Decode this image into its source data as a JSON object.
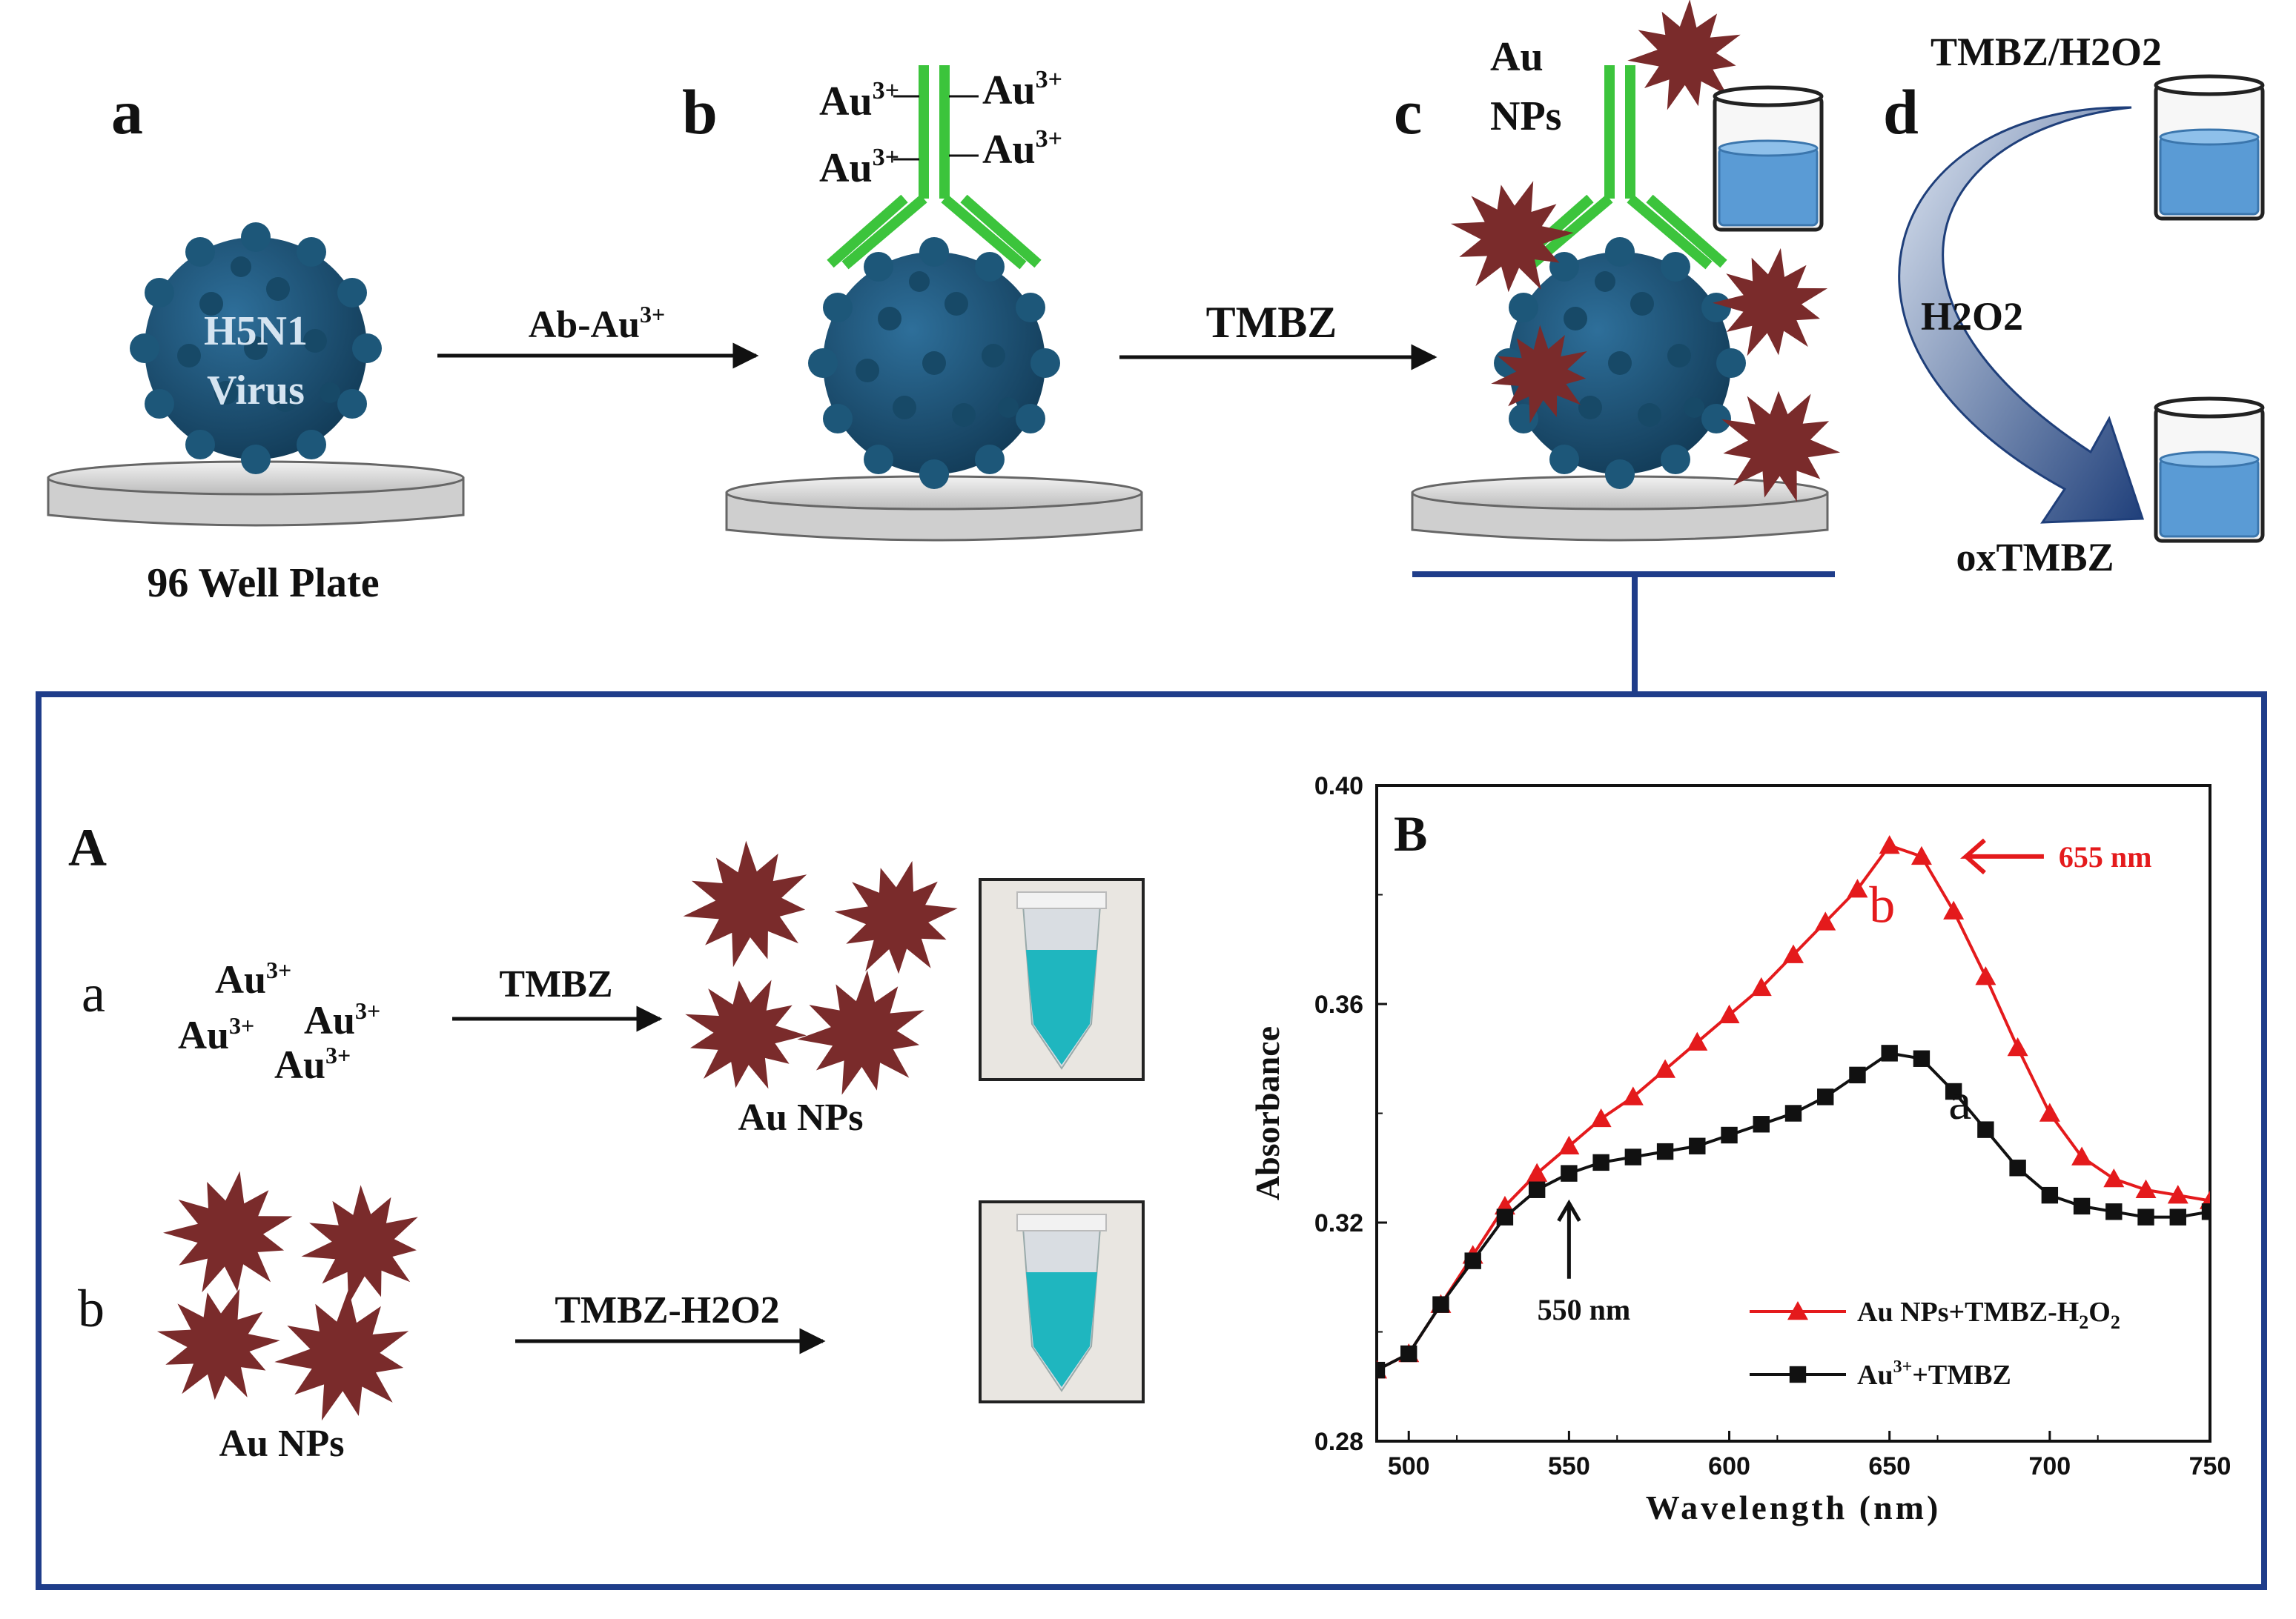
{
  "top": {
    "panel_a": {
      "letter": "a",
      "virus_line1": "H5N1",
      "virus_line2": "Virus",
      "plate_label": "96 Well Plate"
    },
    "arrow_ab": {
      "label_base": "Ab-Au",
      "label_sup": "3+"
    },
    "panel_b": {
      "letter": "b",
      "ion_base": "Au",
      "ion_sup": "3+"
    },
    "arrow_bc": {
      "label": "TMBZ"
    },
    "panel_c": {
      "letter": "c",
      "np_line1": "Au",
      "np_line2": "NPs"
    },
    "panel_d": {
      "letter": "d",
      "top_label": "TMBZ/H2O2",
      "arrow_label": "H2O2",
      "bottom_label": "oxTMBZ"
    }
  },
  "bottom": {
    "panel_A": {
      "letter": "A",
      "row_a": {
        "letter": "a",
        "ion_base": "Au",
        "ion_sup": "3+",
        "arrow_label": "TMBZ",
        "product_label": "Au NPs"
      },
      "row_b": {
        "letter": "b",
        "reactant_label": "Au NPs",
        "arrow_label": "TMBZ-H2O2"
      }
    },
    "panel_B": {
      "letter": "B",
      "curve_a_label": "a",
      "curve_b_label": "b",
      "peak_annotation": "655 nm",
      "shoulder_annotation": "550 nm"
    }
  },
  "colors": {
    "virus": "#1b4f72",
    "antibody": "#3cc43c",
    "nanoparticle": "#7a2b2b",
    "frame": "#1f3d8a",
    "solution": "#5a9bd5",
    "curve_a": "#111111",
    "curve_b": "#e41a1c"
  },
  "chart_data": {
    "type": "line",
    "xlabel": "Wavelength (nm)",
    "ylabel": "Absorbance",
    "xlim": [
      490,
      750
    ],
    "ylim": [
      0.28,
      0.4
    ],
    "xticks": [
      "500",
      "550",
      "600",
      "650",
      "700",
      "750"
    ],
    "yticks": [
      "0.28",
      "0.32",
      "0.36",
      "0.40"
    ],
    "x": [
      490,
      500,
      510,
      520,
      530,
      540,
      550,
      560,
      570,
      580,
      590,
      600,
      610,
      620,
      630,
      640,
      650,
      660,
      670,
      680,
      690,
      700,
      710,
      720,
      730,
      740,
      750
    ],
    "series": [
      {
        "name": "Au NPs+TMBZ-H2O2",
        "legend_label": "Au NPs+TMBZ-H",
        "legend_sub1": "2",
        "legend_mid": "O",
        "legend_sub2": "2",
        "marker": "triangle",
        "color": "#e41a1c",
        "values": [
          0.293,
          0.296,
          0.305,
          0.314,
          0.323,
          0.329,
          0.334,
          0.339,
          0.343,
          0.348,
          0.353,
          0.358,
          0.363,
          0.369,
          0.375,
          0.381,
          0.389,
          0.387,
          0.377,
          0.365,
          0.352,
          0.34,
          0.332,
          0.328,
          0.326,
          0.325,
          0.324
        ]
      },
      {
        "name": "Au3++TMBZ",
        "legend_label": "Au",
        "legend_sup": "3+",
        "legend_tail": "+TMBZ",
        "marker": "square",
        "color": "#111111",
        "values": [
          0.293,
          0.296,
          0.305,
          0.313,
          0.321,
          0.326,
          0.329,
          0.331,
          0.332,
          0.333,
          0.334,
          0.336,
          0.338,
          0.34,
          0.343,
          0.347,
          0.351,
          0.35,
          0.344,
          0.337,
          0.33,
          0.325,
          0.323,
          0.322,
          0.321,
          0.321,
          0.322
        ]
      }
    ]
  }
}
